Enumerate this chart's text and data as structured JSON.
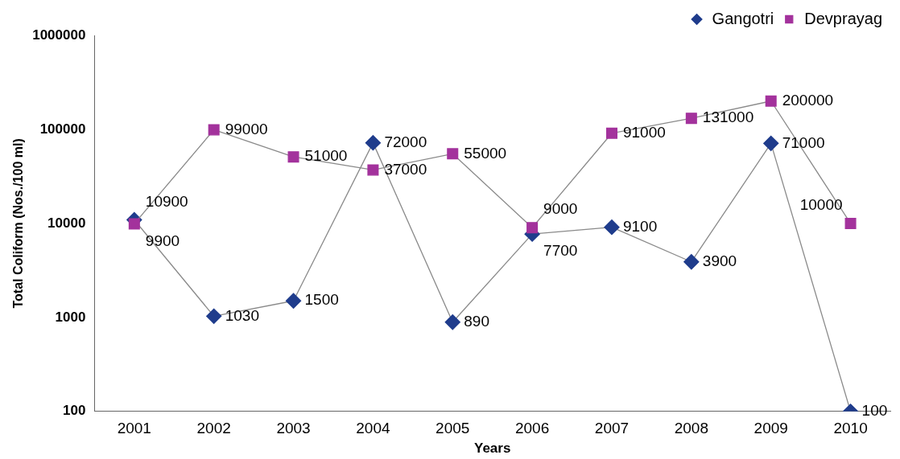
{
  "chart_data": {
    "type": "line",
    "xlabel": "Years",
    "ylabel": "Total Coliform (Nos./100 ml)",
    "categories": [
      "2001",
      "2002",
      "2003",
      "2004",
      "2005",
      "2006",
      "2007",
      "2008",
      "2009",
      "2010"
    ],
    "series": [
      {
        "name": "Gangotri",
        "color": "#1f3c8c",
        "marker": "diamond",
        "values": [
          10900,
          1030,
          1500,
          72000,
          890,
          7700,
          9100,
          3900,
          71000,
          100
        ]
      },
      {
        "name": "Devprayag",
        "color": "#a3329c",
        "marker": "square",
        "values": [
          9900,
          99000,
          51000,
          37000,
          55000,
          9000,
          91000,
          131000,
          200000,
          10000
        ]
      }
    ],
    "log": "y",
    "ylim": [
      100,
      1000000
    ],
    "yticks": [
      100,
      1000,
      10000,
      100000,
      1000000
    ],
    "legend": "top right",
    "data_labels": true,
    "grid": false
  }
}
